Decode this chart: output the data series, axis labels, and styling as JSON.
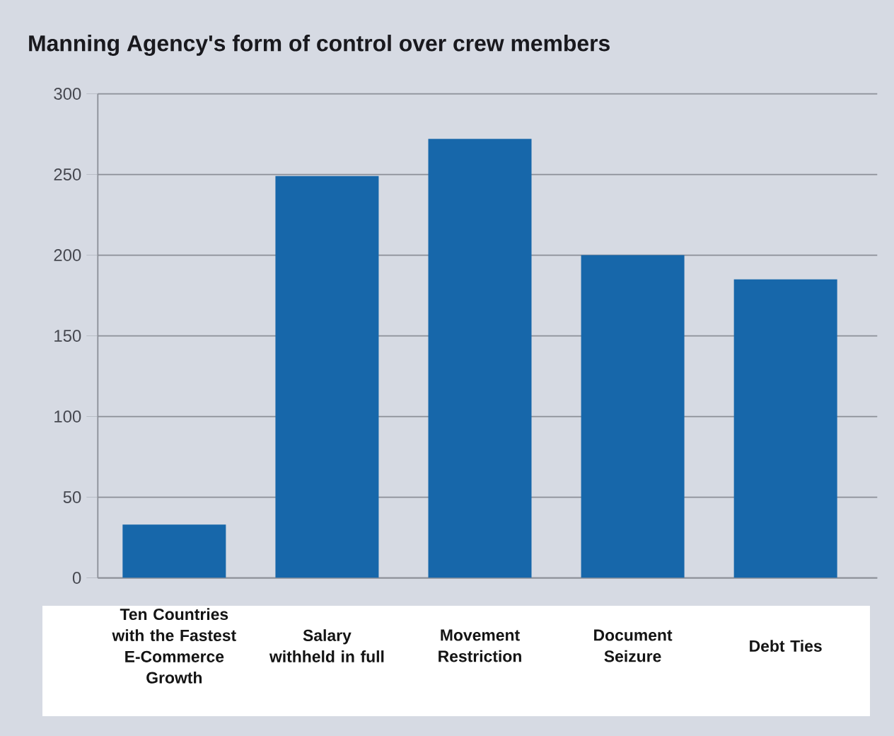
{
  "chart_data": {
    "type": "bar",
    "title": "Manning Agency's form of control over crew members",
    "categories": [
      "Ten Countries with the Fastest E-Commerce Growth",
      "Salary withheld in full",
      "Movement Restriction",
      "Document Seizure",
      "Debt Ties"
    ],
    "values": [
      33,
      249,
      272,
      200,
      185
    ],
    "color": "#1767aa",
    "ylim": [
      0,
      300
    ],
    "yticks": [
      0,
      50,
      100,
      150,
      200,
      250,
      300
    ],
    "grid": "y"
  }
}
